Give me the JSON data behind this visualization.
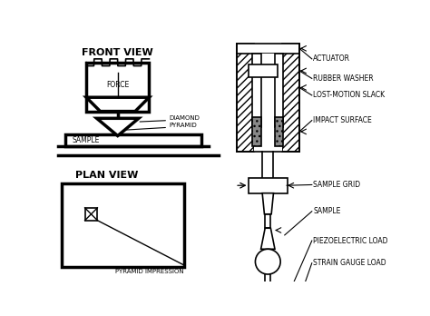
{
  "bg_color": "#ffffff",
  "line_color": "black",
  "labels": {
    "front_view": "FRONT VIEW",
    "plan_view": "PLAN VIEW",
    "force": "FORCE",
    "diamond_pyramid": "DIAMOND\nPYRAMID",
    "sample_fv": "SAMPLE",
    "actuator": "ACTUATOR",
    "rubber_washer": "RUBBER WASHER",
    "lost_motion": "LOST-MOTION SLACK",
    "impact_surface": "IMPACT SURFACE",
    "sample_grid": "SAMPLE GRID",
    "sample_rhs": "SAMPLE",
    "piezoelectric": "PIEZOELECTRIC LOAD",
    "strain_gauge": "STRAIN GAUGE LOAD",
    "pyramid_impression": "PYRAMID IMPRESSION"
  },
  "figsize": [
    4.74,
    3.48
  ],
  "dpi": 100
}
